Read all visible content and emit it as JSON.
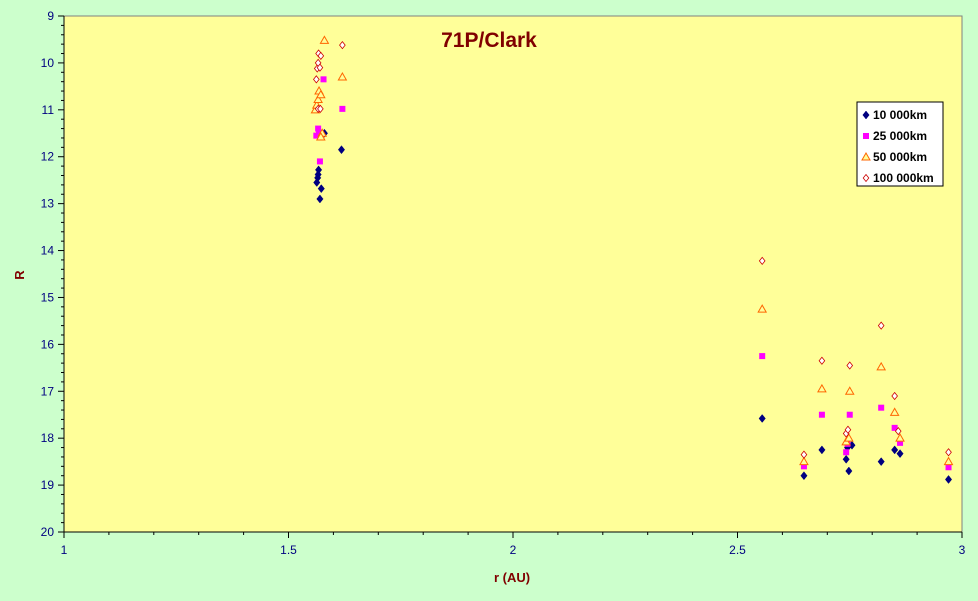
{
  "chart_data": {
    "type": "scatter",
    "title": "71P/Clark",
    "xlabel": "r (AU)",
    "ylabel": "R",
    "xlim": [
      1,
      3
    ],
    "ylim": [
      9,
      20
    ],
    "y_inverted": true,
    "x_ticks": [
      "1",
      "1.5",
      "2",
      "2.5",
      "3"
    ],
    "y_ticks": [
      "9",
      "10",
      "11",
      "12",
      "13",
      "14",
      "15",
      "16",
      "17",
      "18",
      "19",
      "20"
    ],
    "legend_position": "right",
    "plot_background": "#ffff99",
    "background": "#ccffcc",
    "series": [
      {
        "name": "10 000km",
        "marker": "diamond",
        "color": "#000080",
        "points": [
          [
            1.563,
            12.55
          ],
          [
            1.565,
            12.45
          ],
          [
            1.566,
            12.38
          ],
          [
            1.567,
            12.28
          ],
          [
            1.57,
            12.9
          ],
          [
            1.573,
            12.68
          ],
          [
            1.58,
            11.5
          ],
          [
            1.618,
            11.85
          ],
          [
            2.555,
            17.58
          ],
          [
            2.648,
            18.8
          ],
          [
            2.688,
            18.25
          ],
          [
            2.742,
            18.45
          ],
          [
            2.745,
            18.2
          ],
          [
            2.748,
            18.7
          ],
          [
            2.755,
            18.15
          ],
          [
            2.82,
            18.5
          ],
          [
            2.85,
            18.25
          ],
          [
            2.862,
            18.33
          ],
          [
            2.97,
            18.88
          ]
        ]
      },
      {
        "name": "25 000km",
        "marker": "square",
        "color": "#ff00ff",
        "points": [
          [
            1.562,
            11.55
          ],
          [
            1.566,
            11.4
          ],
          [
            1.568,
            11.5
          ],
          [
            1.57,
            12.1
          ],
          [
            1.578,
            10.35
          ],
          [
            1.62,
            10.98
          ],
          [
            2.555,
            16.25
          ],
          [
            2.648,
            18.6
          ],
          [
            2.688,
            17.5
          ],
          [
            2.742,
            18.3
          ],
          [
            2.745,
            18.12
          ],
          [
            2.75,
            17.5
          ],
          [
            2.82,
            17.35
          ],
          [
            2.85,
            17.78
          ],
          [
            2.862,
            18.1
          ],
          [
            2.97,
            18.62
          ]
        ]
      },
      {
        "name": "50 000km",
        "marker": "triangle",
        "color": "#ff6600",
        "points": [
          [
            1.56,
            11.0
          ],
          [
            1.563,
            10.9
          ],
          [
            1.566,
            10.78
          ],
          [
            1.568,
            10.6
          ],
          [
            1.572,
            10.68
          ],
          [
            1.575,
            11.5
          ],
          [
            1.572,
            11.58
          ],
          [
            1.58,
            9.52
          ],
          [
            1.62,
            10.3
          ],
          [
            2.555,
            15.25
          ],
          [
            2.648,
            18.5
          ],
          [
            2.688,
            16.95
          ],
          [
            2.742,
            18.08
          ],
          [
            2.748,
            18.0
          ],
          [
            2.75,
            17.0
          ],
          [
            2.82,
            16.48
          ],
          [
            2.85,
            17.45
          ],
          [
            2.862,
            18.0
          ],
          [
            2.97,
            18.5
          ]
        ]
      },
      {
        "name": "100 000km",
        "marker": "diamond-open",
        "color": "#cc0000",
        "points": [
          [
            1.562,
            10.35
          ],
          [
            1.564,
            10.12
          ],
          [
            1.566,
            10.0
          ],
          [
            1.567,
            9.8
          ],
          [
            1.57,
            10.1
          ],
          [
            1.572,
            9.85
          ],
          [
            1.566,
            10.98
          ],
          [
            1.571,
            10.98
          ],
          [
            1.62,
            9.62
          ],
          [
            2.555,
            14.22
          ],
          [
            2.648,
            18.35
          ],
          [
            2.688,
            16.35
          ],
          [
            2.742,
            17.9
          ],
          [
            2.746,
            17.82
          ],
          [
            2.75,
            16.45
          ],
          [
            2.82,
            15.6
          ],
          [
            2.85,
            17.1
          ],
          [
            2.858,
            17.85
          ],
          [
            2.97,
            18.3
          ]
        ]
      }
    ]
  }
}
